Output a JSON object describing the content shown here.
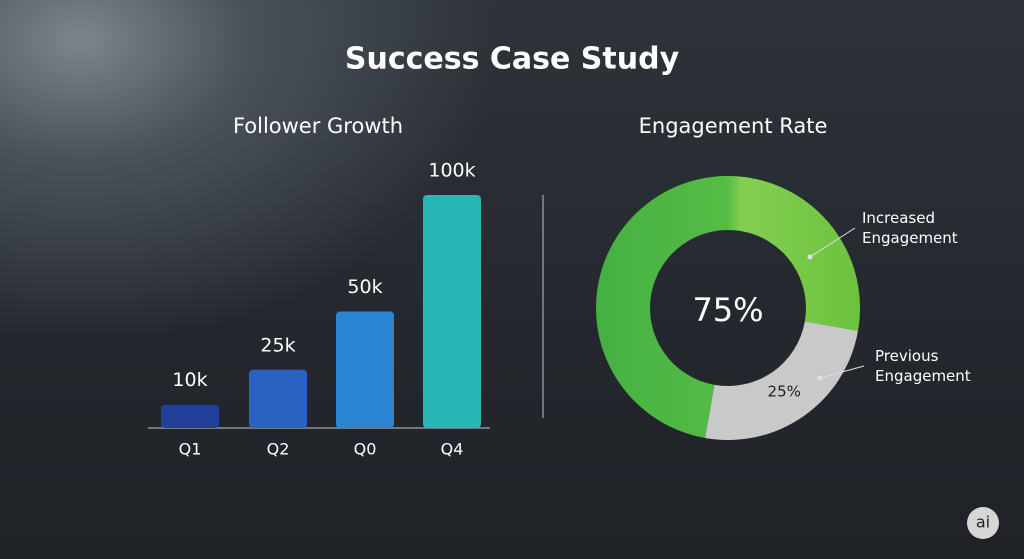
{
  "title": "Success Case Study",
  "watermark": "ai",
  "chart_data": [
    {
      "type": "bar",
      "title": "Follower Growth",
      "categories": [
        "Q1",
        "Q2",
        "Q0",
        "Q4"
      ],
      "values": [
        10,
        25,
        50,
        100
      ],
      "value_labels": [
        "10k",
        "25k",
        "50k",
        "100k"
      ],
      "colors": [
        "#22409a",
        "#2a62c2",
        "#2a86d2",
        "#27b8b5"
      ]
    },
    {
      "type": "pie",
      "title": "Engagement Rate",
      "categories": [
        "Increased Engagement",
        "Previous Engagement"
      ],
      "values": [
        75,
        25
      ],
      "value_labels": [
        "75%",
        "25%"
      ],
      "colors": [
        "#5cbf45",
        "#c9c9c9"
      ]
    }
  ]
}
